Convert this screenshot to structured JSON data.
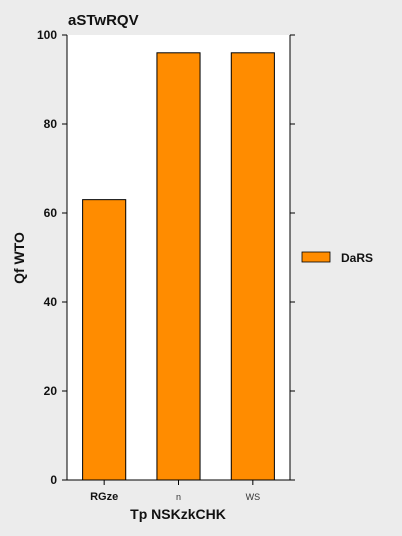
{
  "chart_data": {
    "type": "bar",
    "title": "aSTwRQV",
    "xlabel": "Tp NSKzkCHK",
    "ylabel": "Qf WTO",
    "categories": [
      "RGze",
      "n",
      "WS"
    ],
    "series": [
      {
        "name": "DaRS",
        "values": [
          63,
          96,
          96
        ],
        "color": "#ff8c00"
      }
    ],
    "ylim": [
      0,
      100
    ],
    "yticks": [
      0,
      20,
      40,
      60,
      80,
      100
    ],
    "grid": false,
    "legend_position": "right"
  },
  "colors": {
    "background": "#ececec",
    "plot_background": "#ffffff",
    "bar_fill": "#ff8c00",
    "bar_stroke": "#000000"
  }
}
